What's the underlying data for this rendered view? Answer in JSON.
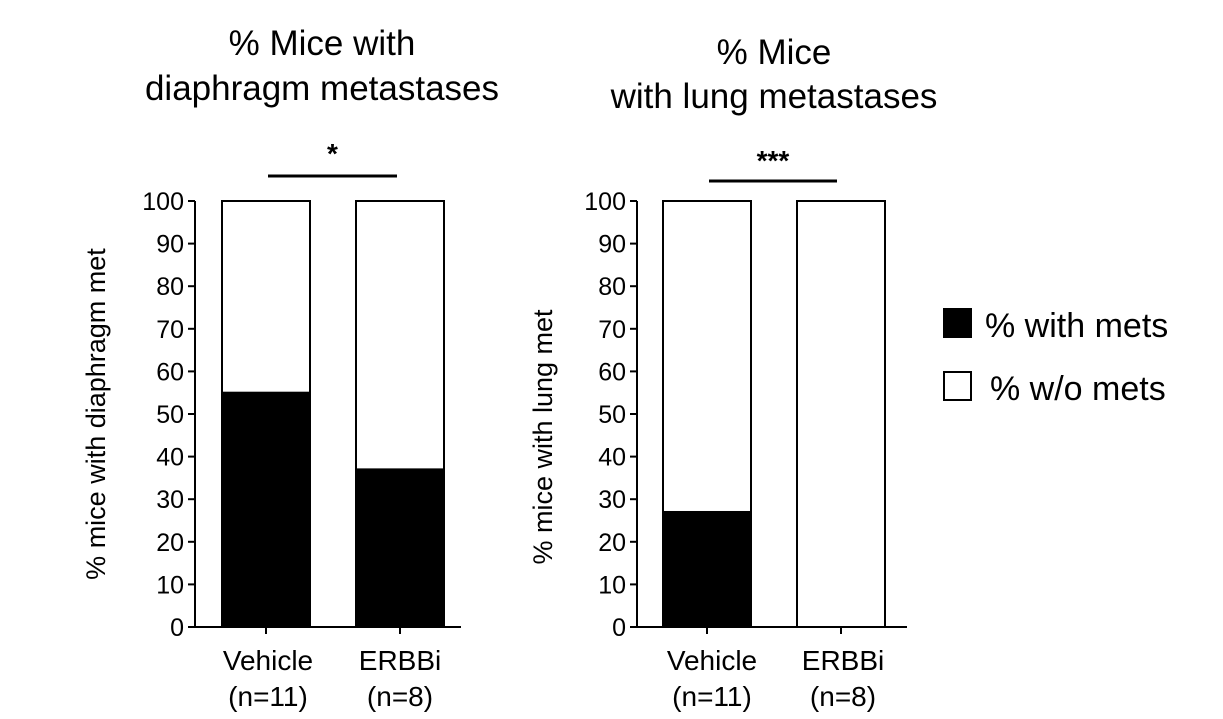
{
  "chart_data": [
    {
      "type": "bar",
      "stacked": true,
      "title": "% Mice with diaphragm metastases",
      "title_lines": [
        "% Mice with",
        "diaphragm metastases"
      ],
      "ylabel": "% mice with diaphragm met",
      "xlabel": "",
      "ylim": [
        0,
        100
      ],
      "yticks": [
        0,
        10,
        20,
        30,
        40,
        50,
        60,
        70,
        80,
        90,
        100
      ],
      "categories": [
        "Vehicle (n=11)",
        "ERBBi (n=8)"
      ],
      "category_lines": [
        [
          "Vehicle",
          "(n=11)"
        ],
        [
          "ERBBi",
          "(n=8)"
        ]
      ],
      "series": [
        {
          "name": "% with mets",
          "values": [
            55,
            37
          ]
        },
        {
          "name": "% w/o mets",
          "values": [
            45,
            63
          ]
        }
      ],
      "significance": "*"
    },
    {
      "type": "bar",
      "stacked": true,
      "title": "% Mice with lung metastases",
      "title_lines": [
        "% Mice",
        "with lung metastases"
      ],
      "ylabel": "% mice with lung met",
      "xlabel": "",
      "ylim": [
        0,
        100
      ],
      "yticks": [
        0,
        10,
        20,
        30,
        40,
        50,
        60,
        70,
        80,
        90,
        100
      ],
      "categories": [
        "Vehicle (n=11)",
        "ERBBi (n=8)"
      ],
      "category_lines": [
        [
          "Vehicle",
          "(n=11)"
        ],
        [
          "ERBBi",
          "(n=8)"
        ]
      ],
      "series": [
        {
          "name": "% with mets",
          "values": [
            27,
            0
          ]
        },
        {
          "name": "% w/o mets",
          "values": [
            73,
            100
          ]
        }
      ],
      "significance": "***"
    }
  ],
  "legend": {
    "placement": "right",
    "items": [
      {
        "label": "% with mets",
        "color": "#000000"
      },
      {
        "label": "% w/o mets",
        "color": "#ffffff"
      }
    ]
  }
}
